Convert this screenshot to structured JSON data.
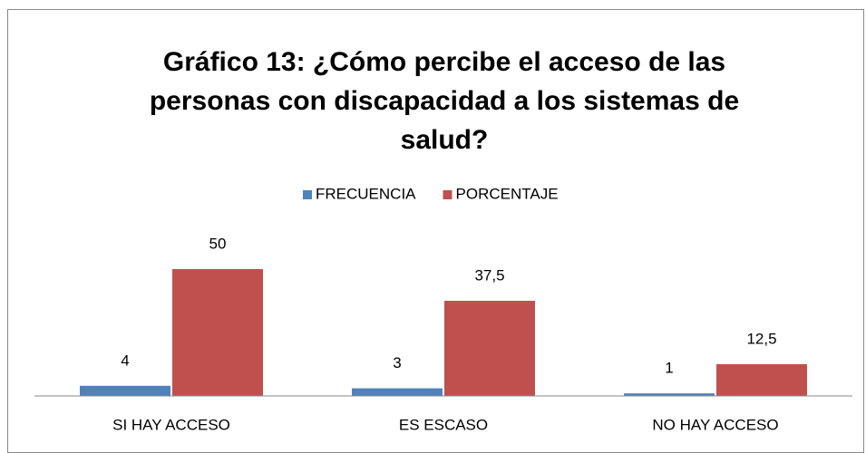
{
  "chart_data": {
    "type": "bar",
    "title": "Gráfico 13: ¿Cómo percibe el acceso de las personas con discapacidad a los sistemas de salud?",
    "categories": [
      "SI HAY ACCESO",
      "ES ESCASO",
      "NO HAY ACCESO"
    ],
    "series": [
      {
        "name": "FRECUENCIA",
        "color": "#4f81bd",
        "values": [
          4,
          3,
          1
        ]
      },
      {
        "name": "PORCENTAJE",
        "color": "#c0504d",
        "values": [
          50,
          37.5,
          12.5
        ],
        "value_labels": [
          "50",
          "37,5",
          "12,5"
        ]
      }
    ],
    "legend": "top"
  }
}
